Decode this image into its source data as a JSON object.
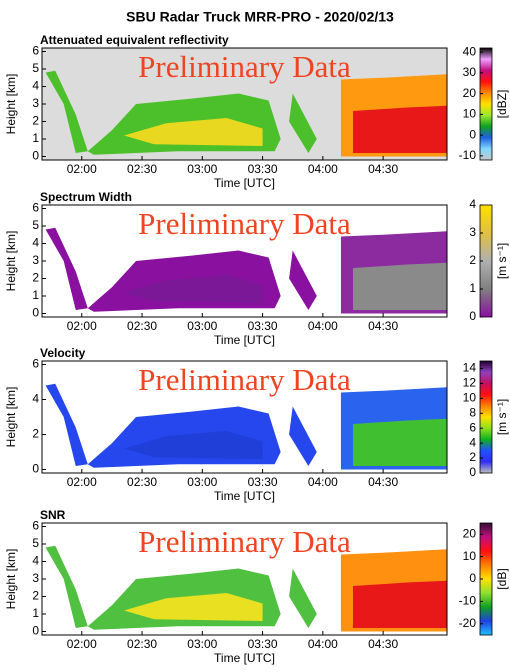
{
  "title": "SBU Radar Truck MRR-PRO - 2020/02/13",
  "chart_data": [
    {
      "type": "heatmap",
      "title": "Attenuated equivalent reflectivity",
      "annotation": "Preliminary Data",
      "xlabel": "Time [UTC]",
      "ylabel": "Height [km]",
      "xlim": [
        1.67,
        5.03
      ],
      "xticks": [
        {
          "value": 2.0,
          "label": "02:00"
        },
        {
          "value": 2.5,
          "label": "02:30"
        },
        {
          "value": 3.0,
          "label": "03:00"
        },
        {
          "value": 3.5,
          "label": "03:30"
        },
        {
          "value": 4.0,
          "label": "04:00"
        },
        {
          "value": 4.5,
          "label": "04:30"
        }
      ],
      "ylim": [
        -0.2,
        6.2
      ],
      "yticks": [
        0,
        1,
        2,
        3,
        4,
        5,
        6
      ],
      "clabel": "[dBZ]",
      "clim": [
        -12,
        42
      ],
      "cticks": [
        -10,
        0,
        10,
        20,
        30,
        40
      ],
      "colormap": [
        "#c8c8c8",
        "#7fd8ff",
        "#1f5fe0",
        "#10a020",
        "#9be830",
        "#ffe000",
        "#ff8800",
        "#ff1010",
        "#c01080",
        "#f0a0ff",
        "#000000"
      ]
    },
    {
      "type": "heatmap",
      "title": "Spectrum Width",
      "annotation": "Preliminary Data",
      "xlabel": "Time [UTC]",
      "ylabel": "Height [km]",
      "xlim": [
        1.67,
        5.03
      ],
      "xticks": [
        {
          "value": 2.0,
          "label": "02:00"
        },
        {
          "value": 2.5,
          "label": "02:30"
        },
        {
          "value": 3.0,
          "label": "03:00"
        },
        {
          "value": 3.5,
          "label": "03:30"
        },
        {
          "value": 4.0,
          "label": "04:00"
        },
        {
          "value": 4.5,
          "label": "04:30"
        }
      ],
      "ylim": [
        -0.2,
        6.2
      ],
      "yticks": [
        0,
        1,
        2,
        3,
        4,
        5,
        6
      ],
      "clabel": "[m s⁻¹]",
      "clim": [
        0,
        4
      ],
      "cticks": [
        0,
        1,
        2,
        3,
        4
      ],
      "colormap": [
        "#8a10a0",
        "#808080",
        "#b0b0b0",
        "#e0c040",
        "#ffe000"
      ]
    },
    {
      "type": "heatmap",
      "title": "Velocity",
      "annotation": "Preliminary Data",
      "xlabel": "Time [UTC]",
      "ylabel": "Height [km]",
      "xlim": [
        1.67,
        5.03
      ],
      "xticks": [
        {
          "value": 2.0,
          "label": "02:00"
        },
        {
          "value": 2.5,
          "label": "02:30"
        },
        {
          "value": 3.0,
          "label": "03:00"
        },
        {
          "value": 3.5,
          "label": "03:30"
        },
        {
          "value": 4.0,
          "label": "04:00"
        },
        {
          "value": 4.5,
          "label": "04:30"
        }
      ],
      "ylim": [
        -0.2,
        6.2
      ],
      "yticks": [
        0,
        2,
        4,
        6
      ],
      "clabel": "[m s⁻¹]",
      "clim": [
        0,
        15
      ],
      "cticks": [
        0,
        2,
        4,
        6,
        8,
        10,
        12,
        14
      ],
      "colormap": [
        "#c0c0c0",
        "#3030f0",
        "#2050ff",
        "#10b020",
        "#90e020",
        "#ffe000",
        "#ff8000",
        "#ff1010",
        "#c01060",
        "#9040c0",
        "#200030"
      ]
    },
    {
      "type": "heatmap",
      "title": "SNR",
      "annotation": "Preliminary Data",
      "xlabel": "Time [UTC]",
      "ylabel": "Height [km]",
      "xlim": [
        1.67,
        5.03
      ],
      "xticks": [
        {
          "value": 2.0,
          "label": "02:00"
        },
        {
          "value": 2.5,
          "label": "02:30"
        },
        {
          "value": 3.0,
          "label": "03:00"
        },
        {
          "value": 3.5,
          "label": "03:30"
        },
        {
          "value": 4.0,
          "label": "04:00"
        },
        {
          "value": 4.5,
          "label": "04:30"
        }
      ],
      "ylim": [
        -0.2,
        6.2
      ],
      "yticks": [
        0,
        1,
        2,
        3,
        4,
        5,
        6
      ],
      "clabel": "[dB]",
      "clim": [
        -25,
        25
      ],
      "cticks": [
        -20,
        -10,
        0,
        10,
        20
      ],
      "colormap": [
        "#20c0ff",
        "#2040e0",
        "#10a020",
        "#90e030",
        "#ffe000",
        "#ff8000",
        "#ff1010",
        "#c01080",
        "#301030"
      ]
    }
  ]
}
